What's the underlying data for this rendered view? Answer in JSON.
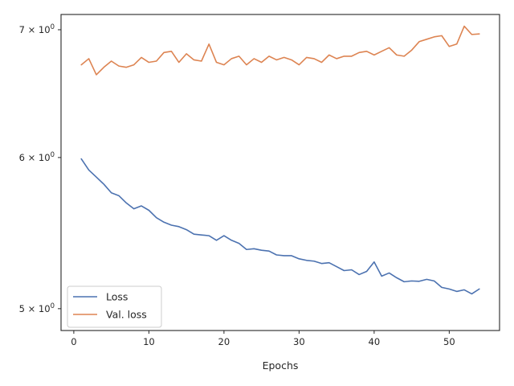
{
  "chart_data": {
    "type": "line",
    "xlabel": "Epochs",
    "ylabel": "",
    "yscale": "log",
    "xlim": [
      -1.7,
      56.7
    ],
    "ylim": [
      4.87,
      7.13
    ],
    "grid": false,
    "legend_position": "lower-left",
    "x_ticks": [
      0,
      10,
      20,
      30,
      40,
      50
    ],
    "x_tick_labels": [
      "0",
      "10",
      "20",
      "30",
      "40",
      "50"
    ],
    "y_ticks": [
      5,
      6,
      7
    ],
    "y_tick_labels": [
      "5 × 10^0",
      "6 × 10^0",
      "7 × 10^0"
    ],
    "x": [
      1,
      2,
      3,
      4,
      5,
      6,
      7,
      8,
      9,
      10,
      11,
      12,
      13,
      14,
      15,
      16,
      17,
      18,
      19,
      20,
      21,
      22,
      23,
      24,
      25,
      26,
      27,
      28,
      29,
      30,
      31,
      32,
      33,
      34,
      35,
      36,
      37,
      38,
      39,
      40,
      41,
      42,
      43,
      44,
      45,
      46,
      47,
      48,
      49,
      50,
      51,
      52,
      53,
      54
    ],
    "series": [
      {
        "name": "Loss",
        "color": "#4c72b0",
        "values": [
          5.99,
          5.91,
          5.86,
          5.81,
          5.75,
          5.73,
          5.68,
          5.64,
          5.66,
          5.63,
          5.58,
          5.55,
          5.53,
          5.52,
          5.5,
          5.47,
          5.465,
          5.46,
          5.43,
          5.46,
          5.43,
          5.41,
          5.37,
          5.375,
          5.365,
          5.36,
          5.335,
          5.33,
          5.33,
          5.31,
          5.3,
          5.295,
          5.28,
          5.285,
          5.26,
          5.235,
          5.24,
          5.21,
          5.23,
          5.29,
          5.2,
          5.22,
          5.19,
          5.165,
          5.17,
          5.168,
          5.18,
          5.17,
          5.13,
          5.12,
          5.105,
          5.115,
          5.09,
          5.12
        ]
      },
      {
        "name": "Val. loss",
        "color": "#dd8452",
        "values": [
          6.71,
          6.76,
          6.63,
          6.69,
          6.74,
          6.7,
          6.69,
          6.71,
          6.77,
          6.73,
          6.74,
          6.81,
          6.82,
          6.73,
          6.8,
          6.75,
          6.74,
          6.88,
          6.73,
          6.71,
          6.76,
          6.78,
          6.71,
          6.76,
          6.73,
          6.78,
          6.75,
          6.77,
          6.75,
          6.71,
          6.77,
          6.76,
          6.73,
          6.79,
          6.76,
          6.78,
          6.78,
          6.81,
          6.82,
          6.79,
          6.82,
          6.85,
          6.79,
          6.78,
          6.83,
          6.9,
          6.92,
          6.94,
          6.95,
          6.86,
          6.88,
          7.03,
          6.96,
          6.965
        ]
      }
    ]
  }
}
